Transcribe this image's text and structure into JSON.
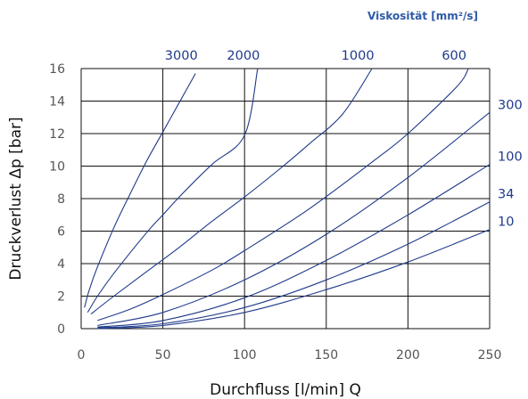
{
  "chart_data": {
    "type": "line",
    "title": "",
    "legend_title": "Viskosität [mm²/s]",
    "xlabel": "Durchfluss [l/min] Q",
    "ylabel": "Druckverlust Δp [bar]",
    "xlim": [
      0,
      250
    ],
    "ylim": [
      0,
      16
    ],
    "x_ticks": [
      0,
      50,
      100,
      150,
      200,
      250
    ],
    "y_ticks": [
      0,
      2,
      4,
      6,
      8,
      10,
      12,
      14,
      16
    ],
    "grid": true,
    "colors": {
      "series": "#1f3a8a",
      "grid": "#111111",
      "legend_title": "#2e5aa8"
    },
    "series": [
      {
        "name": "3000",
        "label_position": "top",
        "x": [
          2,
          5,
          10,
          20,
          30,
          40,
          50,
          60,
          70
        ],
        "y": [
          1.3,
          2.4,
          3.8,
          6.2,
          8.3,
          10.3,
          12.1,
          13.9,
          15.7
        ]
      },
      {
        "name": "2000",
        "label_position": "top",
        "x": [
          4,
          10,
          20,
          40,
          50,
          60,
          80,
          100,
          108
        ],
        "y": [
          1.0,
          2.0,
          3.4,
          5.9,
          7.0,
          8.1,
          10.1,
          11.9,
          16.0
        ]
      },
      {
        "name": "1000",
        "label_position": "top",
        "x": [
          6,
          20,
          40,
          60,
          80,
          100,
          120,
          140,
          160,
          178
        ],
        "y": [
          0.9,
          2.0,
          3.5,
          5.0,
          6.6,
          8.1,
          9.7,
          11.4,
          13.2,
          16.0
        ]
      },
      {
        "name": "600",
        "label_position": "top",
        "x": [
          10,
          30,
          50,
          80,
          100,
          140,
          180,
          200,
          230,
          237
        ],
        "y": [
          0.5,
          1.2,
          2.1,
          3.6,
          4.8,
          7.4,
          10.4,
          12.0,
          14.9,
          16.0
        ]
      },
      {
        "name": "300",
        "label_position": "right",
        "x": [
          10,
          50,
          100,
          150,
          200,
          250
        ],
        "y": [
          0.2,
          1.0,
          3.0,
          5.8,
          9.3,
          13.3
        ]
      },
      {
        "name": "100",
        "label_position": "right",
        "x": [
          10,
          50,
          100,
          150,
          200,
          250
        ],
        "y": [
          0.1,
          0.5,
          1.9,
          4.2,
          7.0,
          10.1
        ]
      },
      {
        "name": "34",
        "label_position": "right",
        "x": [
          10,
          50,
          100,
          150,
          200,
          250
        ],
        "y": [
          0.05,
          0.3,
          1.3,
          3.0,
          5.2,
          7.8
        ]
      },
      {
        "name": "10",
        "label_position": "right",
        "x": [
          10,
          50,
          100,
          150,
          200,
          250
        ],
        "y": [
          0.0,
          0.2,
          1.0,
          2.4,
          4.1,
          6.1
        ]
      }
    ]
  }
}
